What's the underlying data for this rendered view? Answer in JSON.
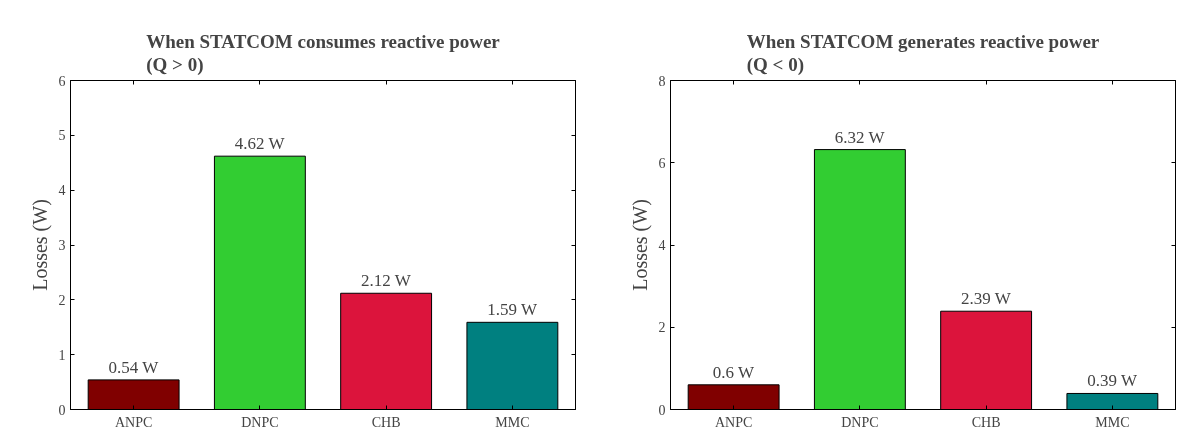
{
  "chart_data": [
    {
      "type": "bar",
      "title": "When STATCOM consumes reactive power\n(Q > 0)",
      "ylabel": "Losses (W)",
      "categories": [
        "ANPC",
        "DNPC",
        "CHB",
        "MMC"
      ],
      "values": [
        0.54,
        4.62,
        2.12,
        1.59
      ],
      "colors": [
        "#800000",
        "#32cd32",
        "#dc143c",
        "#008080"
      ],
      "value_labels": [
        "0.54 W",
        "4.62 W",
        "2.12 W",
        "1.59 W"
      ],
      "ylim": [
        0,
        6
      ],
      "yticks": [
        0,
        1,
        2,
        3,
        4,
        5,
        6
      ],
      "grid": false
    },
    {
      "type": "bar",
      "title": "When STATCOM generates reactive power\n(Q < 0)",
      "ylabel": "Losses (W)",
      "categories": [
        "ANPC",
        "DNPC",
        "CHB",
        "MMC"
      ],
      "values": [
        0.6,
        6.32,
        2.39,
        0.39
      ],
      "colors": [
        "#800000",
        "#32cd32",
        "#dc143c",
        "#008080"
      ],
      "value_labels": [
        "0.6 W",
        "6.32 W",
        "2.39 W",
        "0.39 W"
      ],
      "ylim": [
        0,
        8
      ],
      "yticks": [
        0,
        2,
        4,
        6,
        8
      ],
      "grid": false
    }
  ]
}
